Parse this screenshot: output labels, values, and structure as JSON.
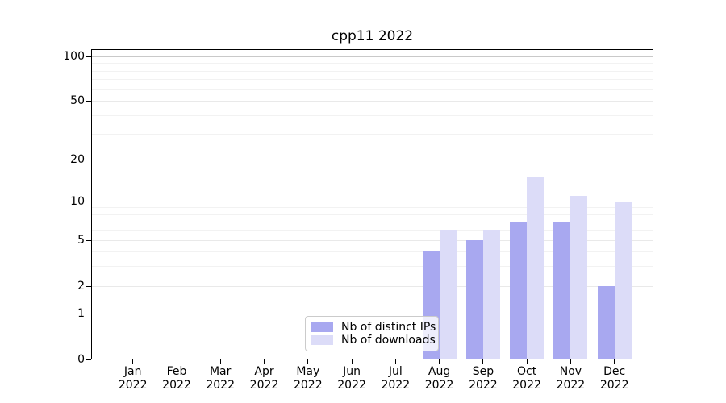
{
  "title": "cpp11 2022",
  "chart_data": {
    "type": "bar",
    "title": "cpp11 2022",
    "x_months": [
      "Jan",
      "Feb",
      "Mar",
      "Apr",
      "May",
      "Jun",
      "Jul",
      "Aug",
      "Sep",
      "Oct",
      "Nov",
      "Dec"
    ],
    "x_year": "2022",
    "categories": [
      "Jan 2022",
      "Feb 2022",
      "Mar 2022",
      "Apr 2022",
      "May 2022",
      "Jun 2022",
      "Jul 2022",
      "Aug 2022",
      "Sep 2022",
      "Oct 2022",
      "Nov 2022",
      "Dec 2022"
    ],
    "series": [
      {
        "name": "Nb of distinct IPs",
        "key": "distinct-ips",
        "color": "#a8a8f0",
        "values": [
          0,
          0,
          0,
          0,
          0,
          0,
          0,
          4,
          5,
          7,
          7,
          2
        ]
      },
      {
        "name": "Nb of downloads",
        "key": "downloads",
        "color": "#dcdcf8",
        "values": [
          0,
          0,
          0,
          0,
          0,
          0,
          0,
          6,
          6,
          15,
          11,
          10
        ]
      }
    ],
    "yscale": "asinh",
    "ylim": [
      0,
      100
    ],
    "ytick_labels": [
      "0",
      "1",
      "2",
      "5",
      "10",
      "20",
      "50",
      "100"
    ],
    "ytick_values": [
      0,
      1,
      2,
      5,
      10,
      20,
      50,
      100
    ],
    "grid": {
      "major_values": [
        1,
        10,
        100
      ],
      "mid_values": [
        2,
        5,
        20,
        50
      ],
      "minor_values": [
        3,
        4,
        6,
        7,
        8,
        9,
        30,
        40,
        60,
        70,
        80,
        90
      ]
    },
    "legend_position": "lower center inside plot"
  },
  "legend": {
    "items": [
      "Nb of distinct IPs",
      "Nb of downloads"
    ]
  },
  "colors": {
    "distinct_ips": "#a8a8f0",
    "downloads": "#dcdcf8",
    "grid_major": "#c9c9c9",
    "grid_mid": "#e9e9e9",
    "grid_minor": "#f2f2f2",
    "spine": "#000000",
    "text": "#000000",
    "legend_border": "#cbcbcb",
    "legend_bg": "rgba(255,255,255,0.8)"
  }
}
